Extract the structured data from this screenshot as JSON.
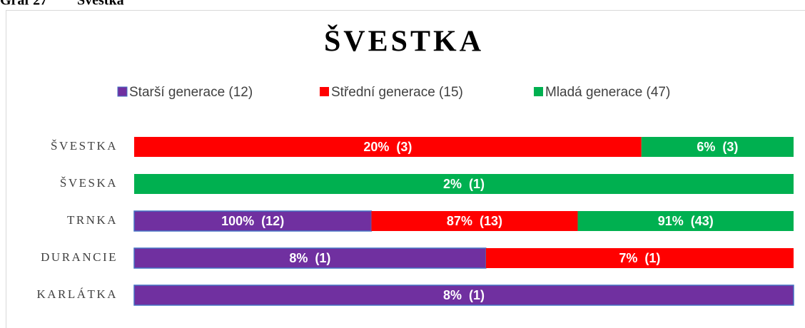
{
  "caption": {
    "label": "Graf 27",
    "title": "Švestka"
  },
  "chart_data": {
    "type": "bar",
    "orientation": "horizontal",
    "stacked": "percent",
    "title": "ŠVESTKA",
    "categories": [
      "ŠVESTKA",
      "ŠVESKA",
      "TRNKA",
      "DURANCIE",
      "KARLÁTKA"
    ],
    "series": [
      {
        "name": "Starší generace (12)",
        "color": "#7030a0",
        "values": [
          null,
          null,
          100,
          8,
          8
        ],
        "value_labels": [
          null,
          null,
          "100%  (12)",
          "8%  (1)",
          "8%  (1)"
        ]
      },
      {
        "name": "Střední generace (15)",
        "color": "#ff0000",
        "values": [
          20,
          null,
          87,
          7,
          null
        ],
        "value_labels": [
          "20%  (3)",
          null,
          "87%  (13)",
          "7%  (1)",
          null
        ]
      },
      {
        "name": "Mladá generace (47)",
        "color": "#00b050",
        "values": [
          6,
          2,
          91,
          null,
          null
        ],
        "value_labels": [
          "6%  (3)",
          "2%  (1)",
          "91%  (43)",
          null,
          null
        ]
      }
    ],
    "legend": "top"
  }
}
